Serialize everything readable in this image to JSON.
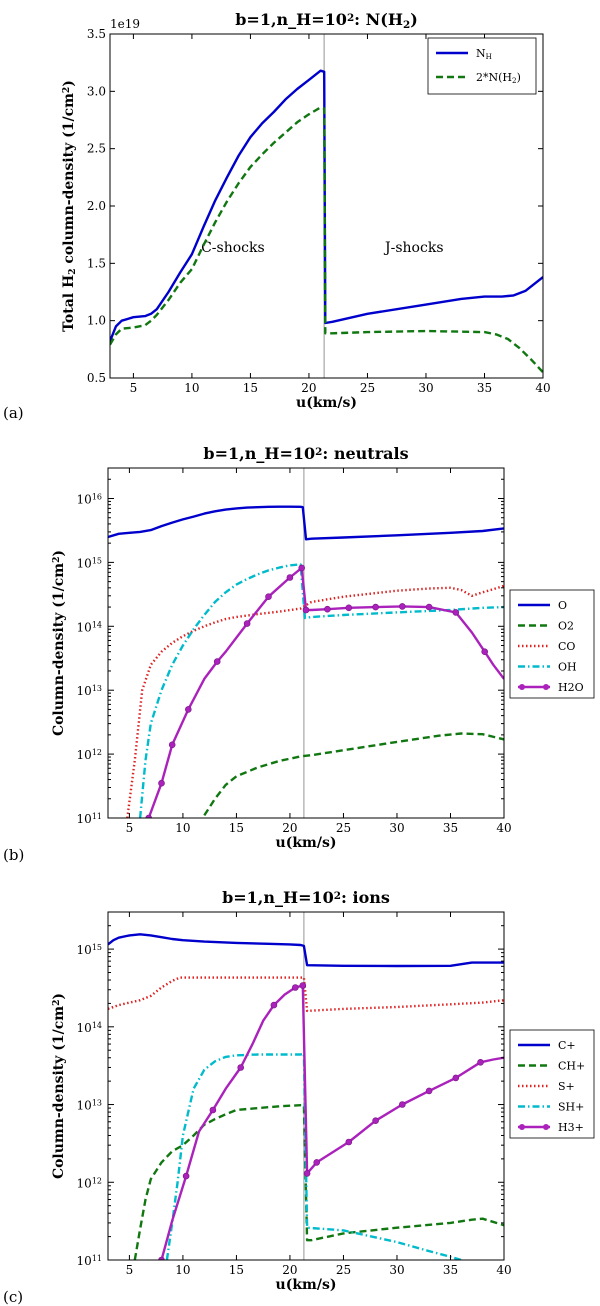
{
  "chart_data": [
    {
      "panel_label": "(a)",
      "type": "line",
      "title": "b=1,n_H=10^2: N(H_2)",
      "xlabel": "u(km/s)",
      "ylabel": "Total H_2 column-density (1/cm^2)",
      "yscale": "linear",
      "offset_text": "1e19",
      "xlim": [
        3,
        40
      ],
      "ylim": [
        0.5,
        3.5
      ],
      "xticks": [
        5,
        10,
        15,
        20,
        25,
        30,
        35,
        40
      ],
      "xticklabels": [
        "5",
        "10",
        "15",
        "20",
        "25",
        "30",
        "35",
        "40"
      ],
      "yticks": [
        0.5,
        1.0,
        1.5,
        2.0,
        2.5,
        3.0,
        3.5
      ],
      "yticklabels": [
        "0.5",
        "1.0",
        "1.5",
        "2.0",
        "2.5",
        "3.0",
        "3.5"
      ],
      "vline": 21.3,
      "annotations": [
        {
          "text": "C-shocks",
          "x": 13.5,
          "y": 1.6
        },
        {
          "text": "J-shocks",
          "x": 29,
          "y": 1.6
        }
      ],
      "legend": {
        "position": "top-right"
      },
      "series": [
        {
          "name": "N_H",
          "color": "#0000cc",
          "style": "solid",
          "x": [
            3,
            3.5,
            4,
            5,
            6,
            6.5,
            7,
            8,
            9,
            10,
            11,
            12,
            13,
            14,
            15,
            16,
            17,
            18,
            19,
            20,
            21,
            21.3,
            21.4,
            22,
            25,
            30,
            33,
            35,
            36.5,
            37.5,
            38.5,
            40
          ],
          "y": [
            0.82,
            0.95,
            1.0,
            1.03,
            1.04,
            1.06,
            1.1,
            1.25,
            1.42,
            1.58,
            1.82,
            2.05,
            2.25,
            2.44,
            2.6,
            2.72,
            2.82,
            2.93,
            3.02,
            3.1,
            3.18,
            3.17,
            0.98,
            0.99,
            1.06,
            1.14,
            1.19,
            1.21,
            1.21,
            1.22,
            1.26,
            1.38
          ]
        },
        {
          "name": "2*N(H_2)",
          "color": "#117711",
          "style": "dashed",
          "x": [
            3,
            3.5,
            4,
            5,
            6,
            6.5,
            7,
            8,
            9,
            10,
            11,
            12,
            13,
            14,
            15,
            16,
            17,
            18,
            19,
            20,
            21,
            21.3,
            21.4,
            22,
            25,
            30,
            35,
            36,
            37,
            38,
            39,
            40
          ],
          "y": [
            0.79,
            0.88,
            0.93,
            0.94,
            0.96,
            1.0,
            1.05,
            1.18,
            1.33,
            1.45,
            1.66,
            1.86,
            2.04,
            2.2,
            2.34,
            2.45,
            2.55,
            2.64,
            2.73,
            2.8,
            2.86,
            2.85,
            0.89,
            0.89,
            0.9,
            0.91,
            0.9,
            0.88,
            0.84,
            0.76,
            0.66,
            0.55
          ]
        }
      ]
    },
    {
      "panel_label": "(b)",
      "type": "line",
      "title": "b=1,n_H=10^2: neutrals",
      "xlabel": "u(km/s)",
      "ylabel": "Column-density (1/cm^2)",
      "yscale": "log",
      "xlim": [
        3,
        40
      ],
      "ylim": [
        100000000000.0,
        3e+16
      ],
      "xticks": [
        5,
        10,
        15,
        20,
        25,
        30,
        35,
        40
      ],
      "xticklabels": [
        "5",
        "10",
        "15",
        "20",
        "25",
        "30",
        "35",
        "40"
      ],
      "yticks": [
        100000000000.0,
        1000000000000.0,
        10000000000000.0,
        100000000000000.0,
        1000000000000000.0,
        1e+16
      ],
      "ytick_exponents": [
        "11",
        "12",
        "13",
        "14",
        "15",
        "16"
      ],
      "vline": 21.3,
      "legend": {
        "position": "outside-right"
      },
      "series": [
        {
          "name": "O",
          "color": "#0000cc",
          "style": "solid",
          "x": [
            3,
            4,
            5,
            6,
            7,
            8,
            9,
            10,
            11,
            12,
            13,
            14,
            15,
            16,
            17,
            18,
            19,
            20,
            21,
            21.2,
            21.5,
            22,
            25,
            30,
            35,
            38,
            40
          ],
          "y": [
            2500000000000000.0,
            2800000000000000.0,
            2900000000000000.0,
            3000000000000000.0,
            3200000000000000.0,
            3700000000000000.0,
            4200000000000000.0,
            4700000000000000.0,
            5200000000000000.0,
            5800000000000000.0,
            6300000000000000.0,
            6700000000000000.0,
            7000000000000000.0,
            7200000000000000.0,
            7300000000000000.0,
            7400000000000000.0,
            7450000000000000.0,
            7450000000000000.0,
            7400000000000000.0,
            7300000000000000.0,
            2300000000000000.0,
            2350000000000000.0,
            2450000000000000.0,
            2650000000000000.0,
            2900000000000000.0,
            3100000000000000.0,
            3400000000000000.0
          ]
        },
        {
          "name": "O2",
          "color": "#117711",
          "style": "dashed",
          "x": [
            12,
            13,
            14,
            15,
            17,
            19,
            21,
            22,
            25,
            30,
            34,
            36,
            38,
            40
          ],
          "y": [
            110000000000.0,
            200000000000.0,
            330000000000.0,
            450000000000.0,
            620000000000.0,
            780000000000.0,
            920000000000.0,
            960000000000.0,
            1150000000000.0,
            1550000000000.0,
            1950000000000.0,
            2100000000000.0,
            2050000000000.0,
            1700000000000.0
          ]
        },
        {
          "name": "CO",
          "color": "#dd2222",
          "style": "dotted",
          "x": [
            4.8,
            5.5,
            6.2,
            7,
            8,
            9,
            10,
            11,
            12,
            13,
            14,
            15,
            17,
            19,
            21,
            22,
            25,
            30,
            33,
            35,
            36,
            37,
            38,
            39,
            40
          ],
          "y": [
            100000000000.0,
            800000000000.0,
            10000000000000.0,
            25000000000000.0,
            40000000000000.0,
            55000000000000.0,
            70000000000000.0,
            85000000000000.0,
            100000000000000.0,
            115000000000000.0,
            130000000000000.0,
            140000000000000.0,
            155000000000000.0,
            170000000000000.0,
            190000000000000.0,
            240000000000000.0,
            290000000000000.0,
            360000000000000.0,
            390000000000000.0,
            400000000000000.0,
            370000000000000.0,
            300000000000000.0,
            340000000000000.0,
            380000000000000.0,
            430000000000000.0
          ]
        },
        {
          "name": "OH",
          "color": "#00bbcc",
          "style": "dashdot",
          "x": [
            6,
            6.5,
            7,
            8,
            9,
            10,
            11,
            12,
            13,
            14,
            15,
            16,
            17,
            18,
            19,
            20,
            21,
            21.4,
            22,
            25,
            30,
            35,
            38,
            40
          ],
          "y": [
            100000000000.0,
            800000000000.0,
            3000000000000.0,
            10000000000000.0,
            25000000000000.0,
            50000000000000.0,
            90000000000000.0,
            150000000000000.0,
            240000000000000.0,
            340000000000000.0,
            450000000000000.0,
            550000000000000.0,
            650000000000000.0,
            750000000000000.0,
            830000000000000.0,
            900000000000000.0,
            930000000000000.0,
            135000000000000.0,
            140000000000000.0,
            150000000000000.0,
            165000000000000.0,
            180000000000000.0,
            195000000000000.0,
            200000000000000.0
          ]
        },
        {
          "name": "H2O",
          "color": "#aa22bb",
          "style": "solid-marker",
          "x": [
            6.8,
            8,
            9,
            10.5,
            12,
            13.2,
            14,
            16,
            18,
            20,
            21.1,
            21.5,
            22,
            23.5,
            25.5,
            28,
            30.5,
            33,
            35.5,
            37,
            38.2,
            39,
            40
          ],
          "y": [
            100000000000.0,
            350000000000.0,
            1400000000000.0,
            5000000000000.0,
            15000000000000.0,
            28000000000000.0,
            40000000000000.0,
            110000000000000.0,
            290000000000000.0,
            580000000000000.0,
            820000000000000.0,
            180000000000000.0,
            180000000000000.0,
            185000000000000.0,
            195000000000000.0,
            200000000000000.0,
            205000000000000.0,
            200000000000000.0,
            165000000000000.0,
            80000000000000.0,
            40000000000000.0,
            25000000000000.0,
            15000000000000.0
          ],
          "markers": [
            0,
            1,
            2,
            3,
            5,
            7,
            8,
            9,
            10,
            11,
            13,
            14,
            15,
            16,
            17,
            18,
            20
          ]
        }
      ]
    },
    {
      "panel_label": "(c)",
      "type": "line",
      "title": "b=1,n_H=10^2: ions",
      "xlabel": "u(km/s)",
      "ylabel": "Column-density (1/cm^2)",
      "yscale": "log",
      "xlim": [
        3,
        40
      ],
      "ylim": [
        100000000000.0,
        3000000000000000.0
      ],
      "xticks": [
        5,
        10,
        15,
        20,
        25,
        30,
        35,
        40
      ],
      "xticklabels": [
        "5",
        "10",
        "15",
        "20",
        "25",
        "30",
        "35",
        "40"
      ],
      "yticks": [
        100000000000.0,
        1000000000000.0,
        10000000000000.0,
        100000000000000.0,
        1000000000000000.0
      ],
      "ytick_exponents": [
        "11",
        "12",
        "13",
        "14",
        "15"
      ],
      "vline": 21.3,
      "legend": {
        "position": "outside-right"
      },
      "series": [
        {
          "name": "C+",
          "color": "#0000cc",
          "style": "solid",
          "x": [
            3,
            3.5,
            4,
            5,
            6,
            7,
            8,
            9,
            10,
            12,
            15,
            18,
            20,
            21,
            21.3,
            21.6,
            25,
            30,
            35,
            36,
            37,
            38,
            40
          ],
          "y": [
            1150000000000000.0,
            1300000000000000.0,
            1400000000000000.0,
            1500000000000000.0,
            1550000000000000.0,
            1500000000000000.0,
            1420000000000000.0,
            1350000000000000.0,
            1300000000000000.0,
            1250000000000000.0,
            1200000000000000.0,
            1170000000000000.0,
            1150000000000000.0,
            1130000000000000.0,
            1100000000000000.0,
            620000000000000.0,
            610000000000000.0,
            605000000000000.0,
            610000000000000.0,
            640000000000000.0,
            670000000000000.0,
            670000000000000.0,
            670000000000000.0
          ]
        },
        {
          "name": "CH+",
          "color": "#117711",
          "style": "dashed",
          "x": [
            5.5,
            6,
            6.5,
            7,
            8,
            9,
            10,
            11,
            12,
            13,
            14,
            15,
            17,
            19,
            21,
            21.3,
            21.6,
            22,
            25,
            30,
            35,
            37,
            38,
            40
          ],
          "y": [
            100000000000.0,
            250000000000.0,
            600000000000.0,
            1100000000000.0,
            1800000000000.0,
            2500000000000.0,
            3000000000000.0,
            4000000000000.0,
            5500000000000.0,
            6500000000000.0,
            7500000000000.0,
            8500000000000.0,
            9000000000000.0,
            9500000000000.0,
            9800000000000.0,
            9800000000000.0,
            180000000000.0,
            180000000000.0,
            220000000000.0,
            260000000000.0,
            300000000000.0,
            330000000000.0,
            340000000000.0,
            280000000000.0
          ]
        },
        {
          "name": "S+",
          "color": "#dd2222",
          "style": "dotted",
          "x": [
            3,
            4,
            5,
            6,
            7,
            8,
            9,
            9.7,
            10.5,
            12,
            15,
            18,
            21,
            21.3,
            21.6,
            25,
            30,
            35,
            38,
            40
          ],
          "y": [
            170000000000000.0,
            190000000000000.0,
            205000000000000.0,
            220000000000000.0,
            250000000000000.0,
            320000000000000.0,
            390000000000000.0,
            430000000000000.0,
            430000000000000.0,
            430000000000000.0,
            430000000000000.0,
            430000000000000.0,
            430000000000000.0,
            430000000000000.0,
            160000000000000.0,
            170000000000000.0,
            180000000000000.0,
            195000000000000.0,
            205000000000000.0,
            220000000000000.0
          ]
        },
        {
          "name": "SH+",
          "color": "#00bbcc",
          "style": "dashdot",
          "x": [
            8.5,
            9,
            9.5,
            10,
            11,
            12,
            13,
            14,
            15,
            17,
            19,
            21,
            21.3,
            21.6,
            25,
            30,
            33,
            35,
            36
          ],
          "y": [
            100000000000.0,
            300000000000.0,
            1000000000000.0,
            4000000000000.0,
            16000000000000.0,
            28000000000000.0,
            36000000000000.0,
            41000000000000.0,
            43000000000000.0,
            44000000000000.0,
            44000000000000.0,
            44000000000000.0,
            45000000000000.0,
            260000000000.0,
            240000000000.0,
            170000000000.0,
            130000000000.0,
            110000000000.0,
            100000000000.0
          ]
        },
        {
          "name": "H3+",
          "color": "#aa22bb",
          "style": "solid-marker",
          "x": [
            8,
            9,
            10.3,
            11.5,
            12.8,
            14,
            15.4,
            16.5,
            17.5,
            18.5,
            19.5,
            20.5,
            21.2,
            21.6,
            22.5,
            25.5,
            28,
            30.5,
            33,
            35.5,
            37.8,
            39,
            40
          ],
          "y": [
            100000000000.0,
            320000000000.0,
            1200000000000.0,
            4500000000000.0,
            8500000000000.0,
            16000000000000.0,
            30000000000000.0,
            60000000000000.0,
            120000000000000.0,
            190000000000000.0,
            260000000000000.0,
            320000000000000.0,
            340000000000000.0,
            1300000000000.0,
            1800000000000.0,
            3300000000000.0,
            6200000000000.0,
            10000000000000.0,
            15000000000000.0,
            22000000000000.0,
            35000000000000.0,
            38000000000000.0,
            40000000000000.0
          ],
          "markers": [
            0,
            2,
            4,
            6,
            9,
            11,
            12,
            13,
            14,
            15,
            16,
            17,
            18,
            19,
            20
          ]
        }
      ]
    }
  ]
}
